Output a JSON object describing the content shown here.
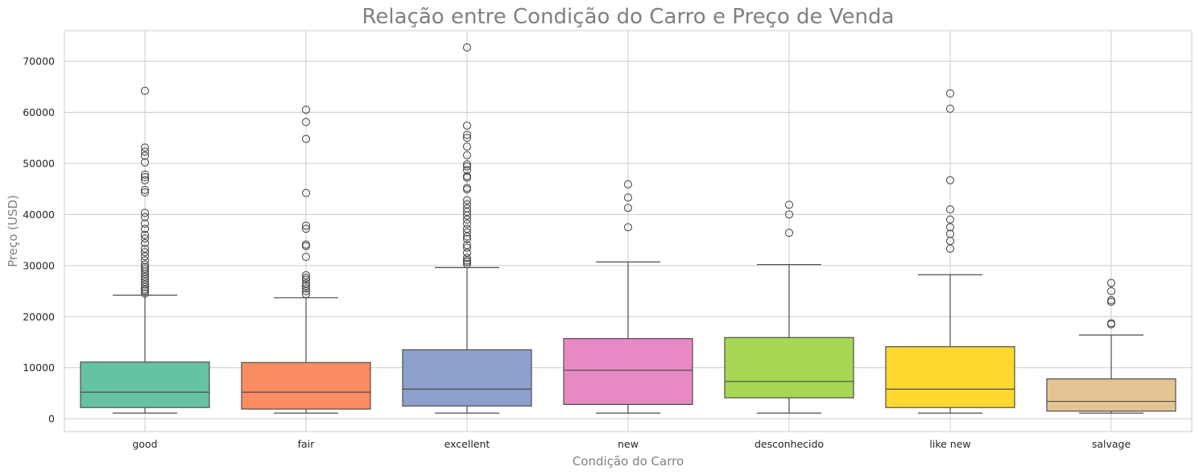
{
  "chart_data": {
    "type": "box",
    "title": "Relação entre Condição do Carro e Preço de Venda",
    "xlabel": "Condição do Carro",
    "ylabel": "Preço (USD)",
    "ylim": [
      -2500,
      76000
    ],
    "yticks": [
      0,
      10000,
      20000,
      30000,
      40000,
      50000,
      60000,
      70000
    ],
    "grid": true,
    "categories": [
      "good",
      "fair",
      "excellent",
      "new",
      "desconhecido",
      "like new",
      "salvage"
    ],
    "colors": [
      "#66c2a5",
      "#fc8d62",
      "#8da0cb",
      "#e78ac3",
      "#a6d854",
      "#ffd92f",
      "#e5c494"
    ],
    "boxes": [
      {
        "category": "good",
        "whisker_low": 1100,
        "q1": 2200,
        "median": 5200,
        "q3": 11100,
        "whisker_high": 24200,
        "outliers": [
          24500,
          25000,
          25300,
          25800,
          26300,
          26800,
          27300,
          27800,
          28300,
          28800,
          29300,
          29700,
          30200,
          31000,
          31800,
          32600,
          33300,
          34400,
          35300,
          36000,
          37200,
          38200,
          39500,
          40300,
          44300,
          44800,
          46700,
          47300,
          47800,
          50200,
          51500,
          52300,
          53100,
          64200
        ]
      },
      {
        "category": "fair",
        "whisker_low": 1100,
        "q1": 1900,
        "median": 5200,
        "q3": 11000,
        "whisker_high": 23700,
        "outliers": [
          24400,
          25000,
          25500,
          26000,
          26500,
          27200,
          27600,
          28100,
          31700,
          33800,
          34100,
          37200,
          37800,
          44200,
          54800,
          58100,
          60500
        ]
      },
      {
        "category": "excellent",
        "whisker_low": 1100,
        "q1": 2500,
        "median": 5800,
        "q3": 13500,
        "whisker_high": 29600,
        "outliers": [
          30300,
          30700,
          31000,
          31500,
          32500,
          33500,
          34000,
          35200,
          35700,
          36500,
          37200,
          38200,
          39000,
          39800,
          40500,
          41200,
          42000,
          42800,
          44900,
          45200,
          47200,
          47500,
          48700,
          49400,
          49800,
          51600,
          53300,
          55000,
          55600,
          57400,
          72700
        ]
      },
      {
        "category": "new",
        "whisker_low": 1100,
        "q1": 2800,
        "median": 9500,
        "q3": 15700,
        "whisker_high": 30700,
        "outliers": [
          37500,
          41300,
          43300,
          45900
        ]
      },
      {
        "category": "desconhecido",
        "whisker_low": 1100,
        "q1": 4100,
        "median": 7300,
        "q3": 15900,
        "whisker_high": 30200,
        "outliers": [
          36400,
          40000,
          41900
        ]
      },
      {
        "category": "like new",
        "whisker_low": 1100,
        "q1": 2200,
        "median": 5800,
        "q3": 14100,
        "whisker_high": 28200,
        "outliers": [
          33300,
          34800,
          36200,
          37500,
          39000,
          41000,
          46700,
          60700,
          63700
        ]
      },
      {
        "category": "salvage",
        "whisker_low": 1100,
        "q1": 1500,
        "median": 3400,
        "q3": 7800,
        "whisker_high": 16400,
        "outliers": [
          18500,
          18700,
          22900,
          23200,
          25000,
          26600
        ]
      }
    ]
  }
}
